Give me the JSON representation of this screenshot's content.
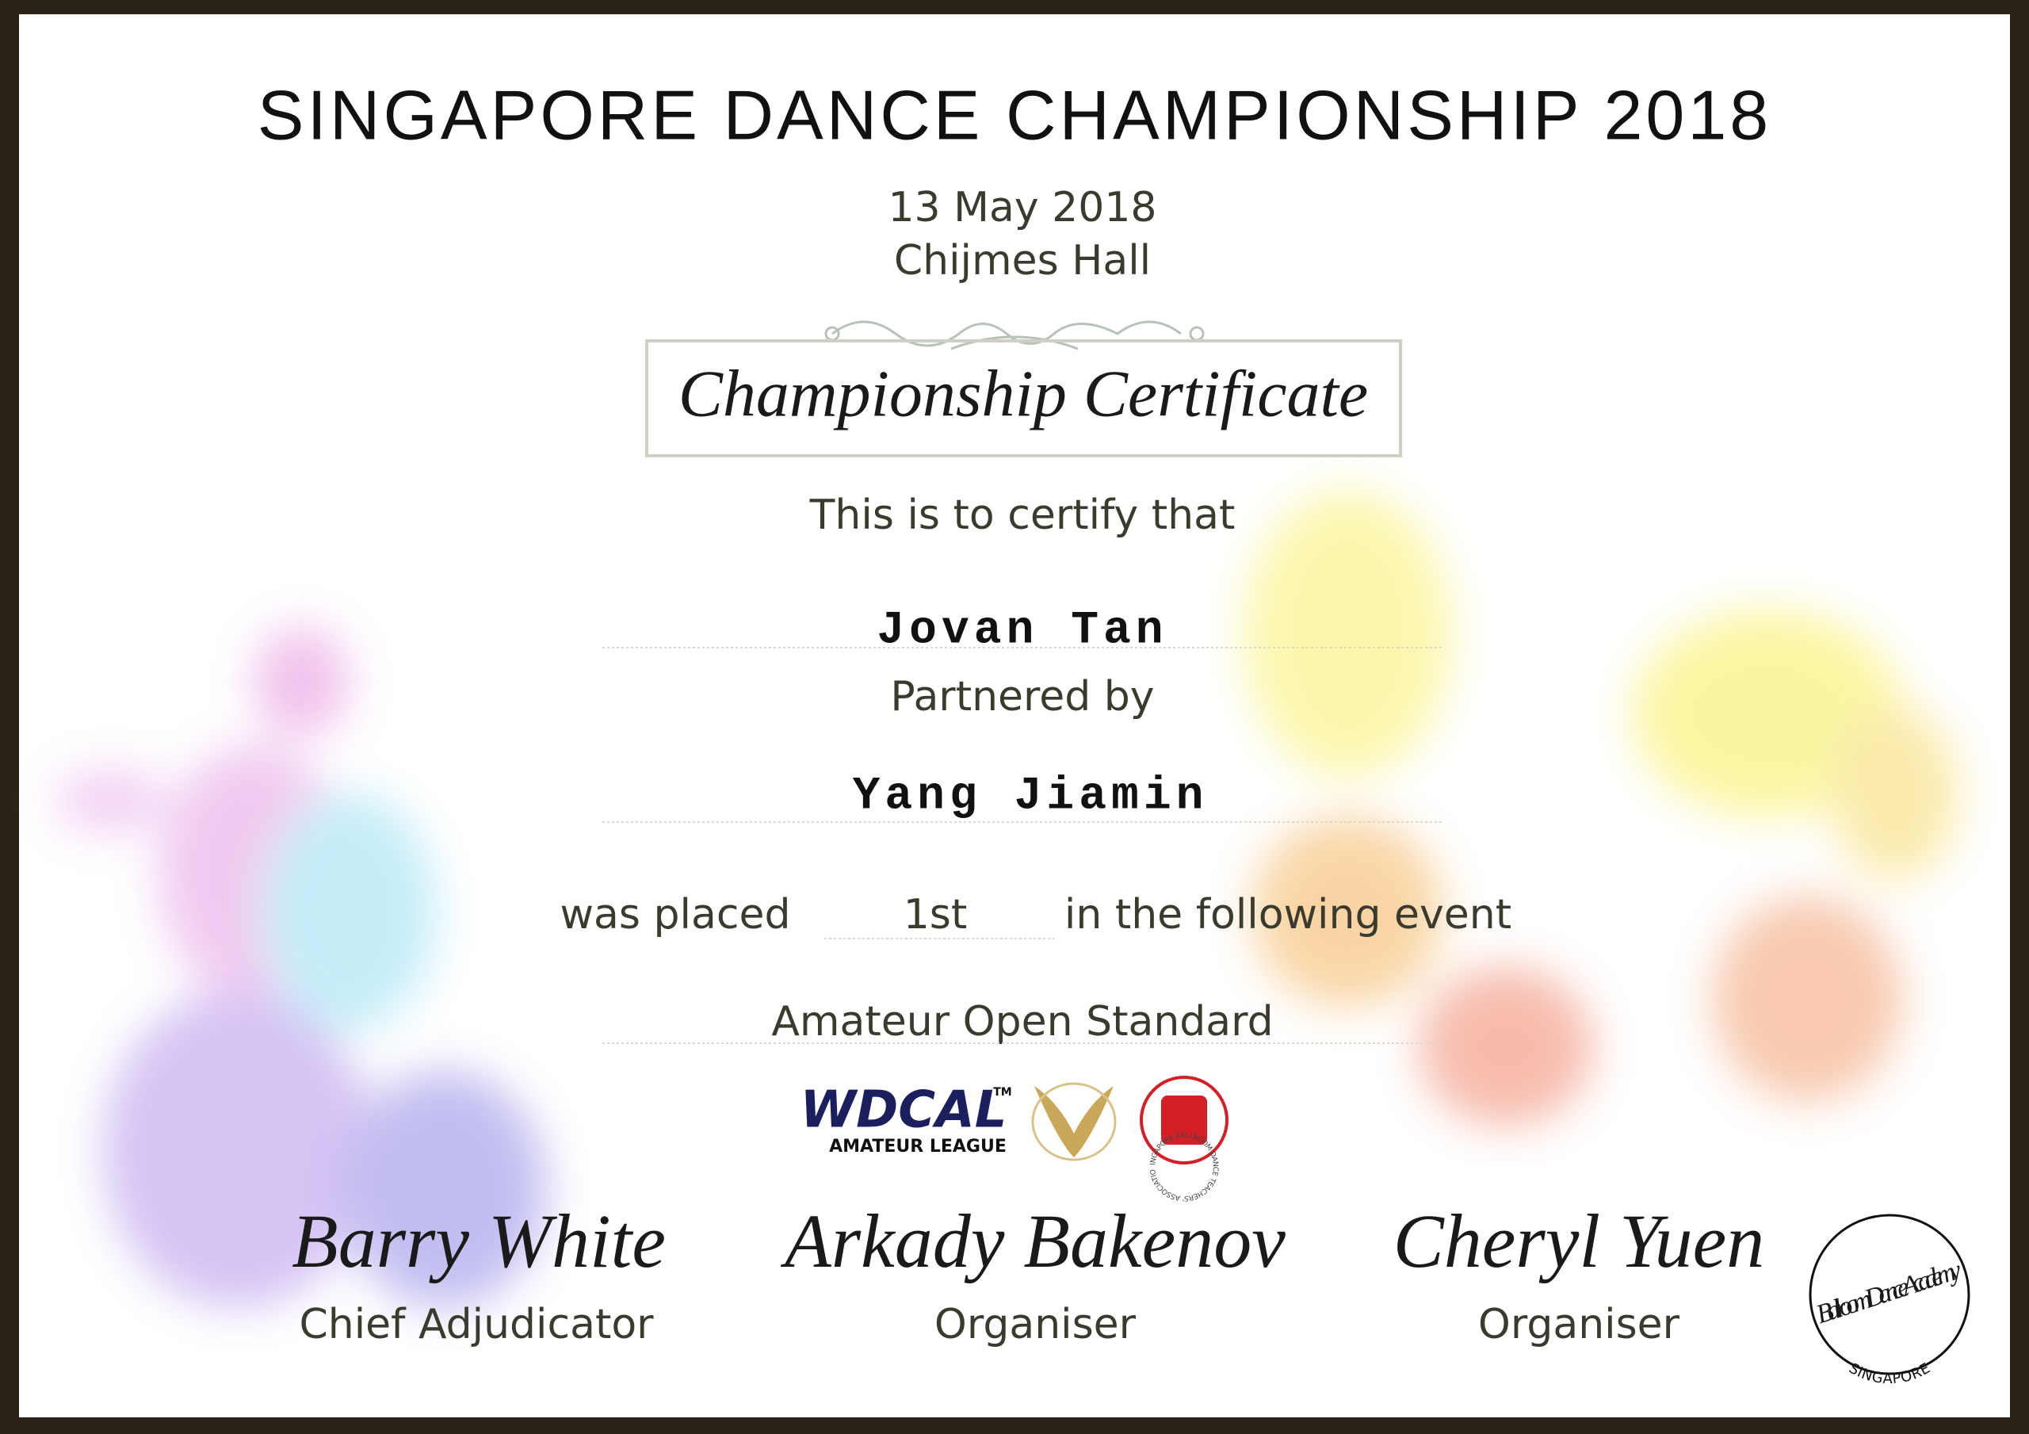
{
  "header": {
    "title": "SINGAPORE DANCE CHAMPIONSHIP 2018",
    "date": "13 May 2018",
    "venue": "Chijmes Hall"
  },
  "certificate": {
    "heading": "Championship Certificate",
    "intro": "This is to certify that",
    "name": "Jovan Tan",
    "partner_label": "Partnered by",
    "partner": "Yang Jiamin",
    "placed_label": "was placed",
    "place": "1st",
    "event_label": "in the following event",
    "event": "Amateur Open Standard"
  },
  "logos": {
    "wdcal": "WDCAL",
    "trademark": "TM",
    "league": "AMATEUR LEAGUE",
    "association": "SINGAPORE BALLROOM DANCE TEACHERS' ASSOCIATION"
  },
  "signatures": [
    {
      "signature": "Barry White",
      "role": "Chief Adjudicator"
    },
    {
      "signature": "Arkady Bakenov",
      "role": "Organiser"
    },
    {
      "signature": "Cheryl Yuen",
      "role": "Organiser"
    }
  ],
  "seal": {
    "name": "Ballroom Dance Academy",
    "place": "SINGAPORE"
  }
}
